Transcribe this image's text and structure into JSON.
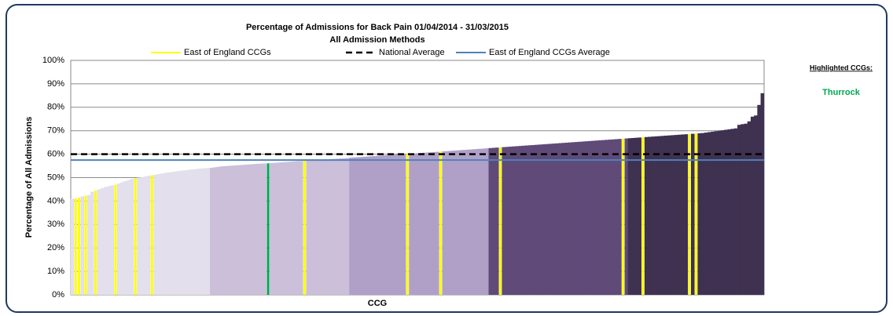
{
  "chart_data": {
    "type": "bar",
    "title": "Percentage of Admissions for Back Pain 01/04/2014 - 31/03/2015",
    "subtitle": "All Admission Methods",
    "xlabel": "CCG",
    "ylabel": "Percentage of All Admissions",
    "values": [
      41.0,
      41.2,
      41.5,
      42.0,
      42.3,
      42.6,
      44.0,
      44.5,
      45.0,
      45.5,
      46.0,
      46.3,
      46.7,
      47.0,
      47.5,
      48.0,
      48.5,
      49.0,
      49.5,
      49.8,
      50.0,
      50.2,
      50.5,
      50.8,
      51.0,
      51.2,
      51.5,
      51.7,
      52.0,
      52.2,
      52.4,
      52.6,
      52.8,
      53.0,
      53.1,
      53.3,
      53.5,
      53.6,
      53.8,
      53.9,
      54.0,
      54.1,
      54.2,
      54.4,
      54.6,
      54.8,
      54.9,
      55.0,
      55.1,
      55.2,
      55.3,
      55.4,
      55.5,
      55.6,
      55.7,
      55.8,
      55.9,
      56.0,
      56.0,
      56.1,
      56.2,
      56.3,
      56.4,
      56.5,
      56.6,
      56.7,
      56.8,
      56.9,
      57.0,
      57.0,
      57.1,
      57.2,
      57.3,
      57.4,
      57.5,
      57.6,
      57.7,
      57.8,
      57.9,
      58.0,
      58.1,
      58.2,
      58.3,
      58.4,
      58.5,
      58.6,
      58.7,
      58.8,
      58.9,
      59.0,
      59.1,
      59.2,
      59.3,
      59.4,
      59.5,
      59.6,
      59.7,
      59.8,
      59.9,
      60.0,
      60.0,
      60.1,
      60.2,
      60.3,
      60.4,
      60.5,
      60.6,
      60.7,
      60.8,
      60.9,
      61.0,
      61.1,
      61.2,
      61.3,
      61.4,
      61.5,
      61.6,
      61.7,
      61.8,
      61.9,
      62.0,
      62.1,
      62.2,
      62.3,
      62.4,
      62.5,
      62.6,
      62.7,
      62.8,
      62.9,
      63.0,
      63.1,
      63.2,
      63.3,
      63.4,
      63.5,
      63.6,
      63.7,
      63.8,
      63.9,
      64.0,
      64.1,
      64.2,
      64.3,
      64.4,
      64.5,
      64.6,
      64.7,
      64.8,
      64.9,
      65.0,
      65.1,
      65.2,
      65.3,
      65.4,
      65.5,
      65.6,
      65.7,
      65.8,
      65.9,
      66.0,
      66.1,
      66.2,
      66.3,
      66.4,
      66.5,
      66.6,
      66.7,
      66.8,
      66.9,
      67.0,
      67.1,
      67.2,
      67.3,
      67.4,
      67.5,
      67.6,
      67.7,
      67.8,
      67.9,
      68.0,
      68.1,
      68.2,
      68.3,
      68.4,
      68.5,
      68.6,
      68.7,
      68.8,
      68.9,
      69.0,
      69.2,
      69.4,
      69.6,
      69.8,
      70.0,
      70.2,
      70.4,
      70.6,
      70.8,
      71.0,
      72.5,
      72.8,
      73.0,
      74.0,
      76.0,
      76.5,
      81.0,
      86.0
    ],
    "quintile_colors": [
      "#e3dfec",
      "#cbbfd9",
      "#b0a0c8",
      "#5f4a78",
      "#3f3150"
    ],
    "groups": [
      {
        "name": "East of England CCGs",
        "color": "#ffff00",
        "indices": [
          1,
          2,
          4,
          7,
          13,
          19,
          24,
          70,
          101,
          111,
          129,
          166,
          172,
          186,
          188
        ]
      }
    ],
    "reference_lines": [
      {
        "name": "National Average",
        "value": 60,
        "color": "#000000",
        "dashed": true
      },
      {
        "name": "East of England CCGs Average",
        "value": 57.5,
        "color": "#4f81bd",
        "dashed": false
      }
    ],
    "highlighted": {
      "label": "Highlighted CCGs:",
      "names": [
        "Thurrock"
      ],
      "indices": [
        59
      ],
      "color": "#00a651"
    },
    "ylim": [
      0,
      100
    ],
    "yticks": [
      {
        "value": 0,
        "label": "0%"
      },
      {
        "value": 10,
        "label": "10%"
      },
      {
        "value": 20,
        "label": "20%"
      },
      {
        "value": 30,
        "label": "30%"
      },
      {
        "value": 40,
        "label": "40%"
      },
      {
        "value": 50,
        "label": "50%"
      },
      {
        "value": 60,
        "label": "60%"
      },
      {
        "value": 70,
        "label": "70%"
      },
      {
        "value": 80,
        "label": "80%"
      },
      {
        "value": 90,
        "label": "90%"
      },
      {
        "value": 100,
        "label": "100%"
      }
    ],
    "grid": true
  }
}
